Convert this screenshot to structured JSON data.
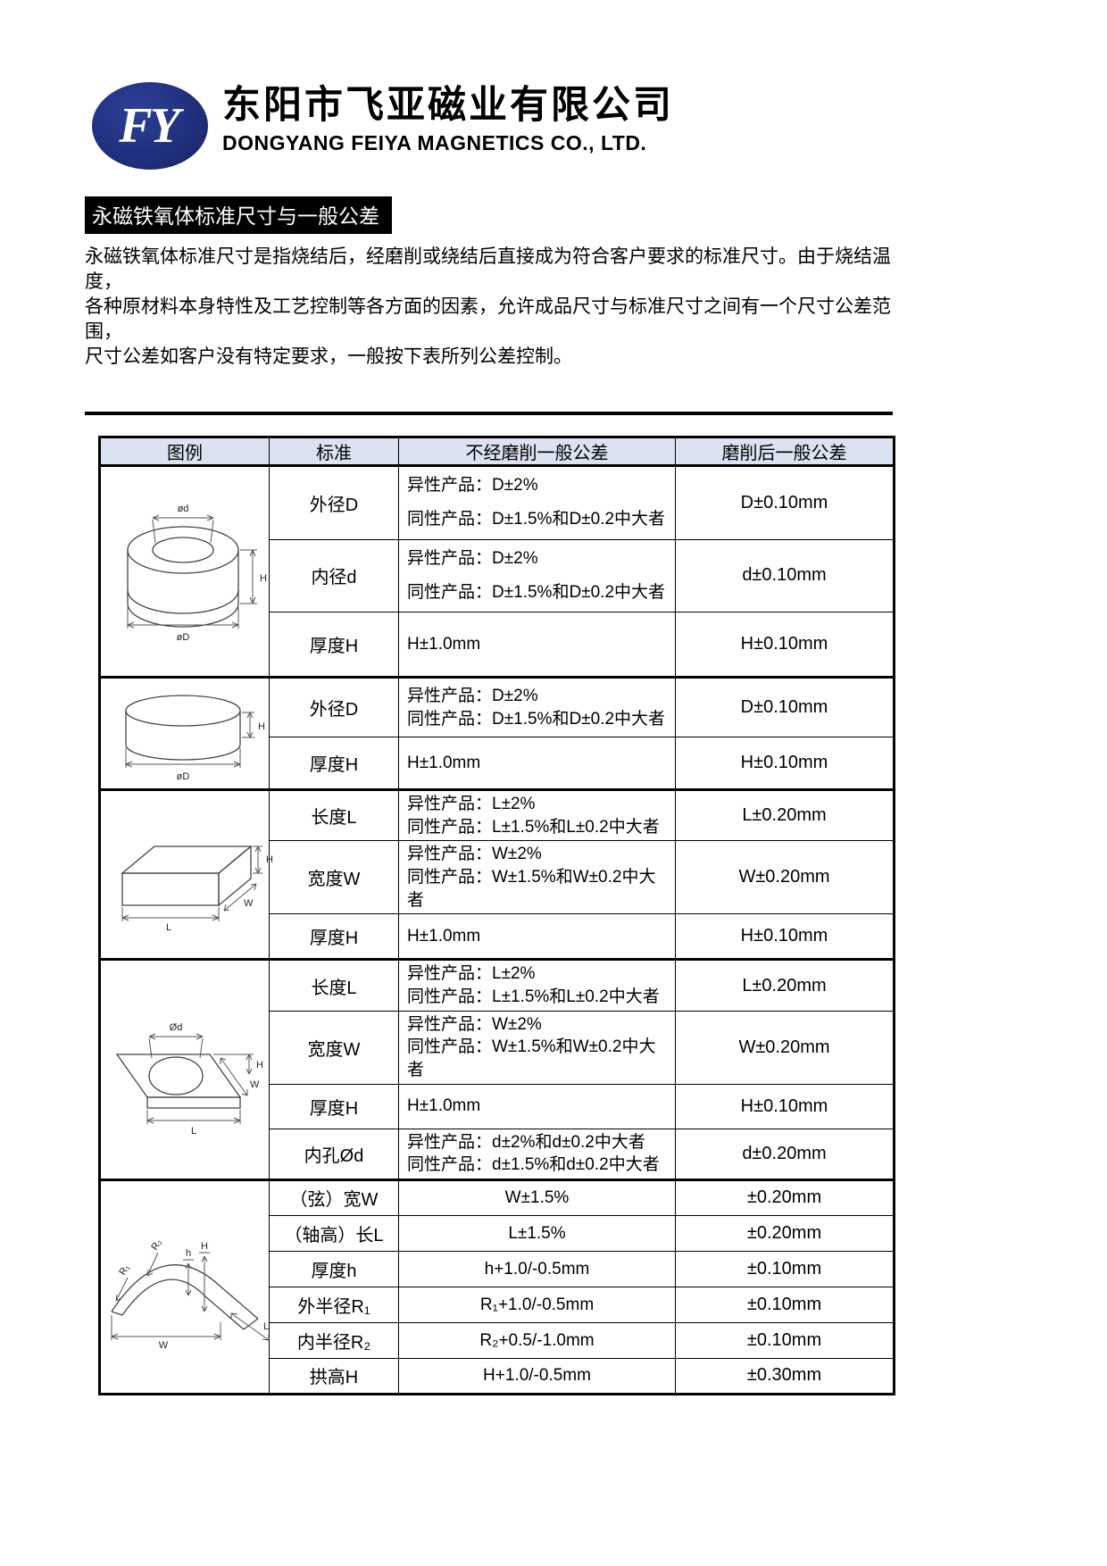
{
  "company": {
    "logo_text": "FY",
    "name_cn": "东阳市飞亚磁业有限公司",
    "name_en": "DONGYANG FEIYA MAGNETICS CO., LTD."
  },
  "section": {
    "title": "永磁铁氧体标准尺寸与一般公差",
    "paragraph_lines": [
      "永磁铁氧体标准尺寸是指烧结后，经磨削或绕结后直接成为符合客户要求的标准尺寸。由于烧结温度，",
      "各种原材料本身特性及工艺控制等各方面的因素，允许成品尺寸与标准尺寸之间有一个尺寸公差范围，",
      "尺寸公差如客户没有特定要求，一般按下表所列公差控制。"
    ]
  },
  "colors": {
    "logo_navy": "#20307e",
    "table_header_bg": "#dbe2f1",
    "heading_bg": "#000000"
  },
  "table": {
    "headers": [
      "图例",
      "标准",
      "不经磨削一般公差",
      "磨削后一般公差"
    ],
    "groups": [
      {
        "diagram": "ring",
        "diagram_labels": [
          "ød",
          "H",
          "øD"
        ],
        "rows": [
          {
            "standard": "外径D",
            "tolerance_lines": [
              "异性产品：D±2%",
              "同性产品：D±1.5%和D±0.2中大者"
            ],
            "ground": "D±0.10mm",
            "center": false
          },
          {
            "standard": "内径d",
            "tolerance_lines": [
              "异性产品：D±2%",
              "同性产品：D±1.5%和D±0.2中大者"
            ],
            "ground": "d±0.10mm",
            "center": false
          },
          {
            "standard": "厚度H",
            "tolerance_lines": [
              "H±1.0mm"
            ],
            "ground": "H±0.10mm",
            "center": false
          }
        ]
      },
      {
        "diagram": "disc",
        "diagram_labels": [
          "H",
          "øD"
        ],
        "rows": [
          {
            "standard": "外径D",
            "tolerance_lines": [
              "异性产品：D±2%",
              "同性产品：D±1.5%和D±0.2中大者"
            ],
            "ground": "D±0.10mm",
            "center": false
          },
          {
            "standard": "厚度H",
            "tolerance_lines": [
              "H±1.0mm"
            ],
            "ground": "H±0.10mm",
            "center": false
          }
        ]
      },
      {
        "diagram": "block",
        "diagram_labels": [
          "H",
          "W",
          "L"
        ],
        "rows": [
          {
            "standard": "长度L",
            "tolerance_lines": [
              "异性产品：L±2%",
              "同性产品：L±1.5%和L±0.2中大者"
            ],
            "ground": "L±0.20mm",
            "center": false
          },
          {
            "standard": "宽度W",
            "tolerance_lines": [
              "异性产品：W±2%",
              "同性产品：W±1.5%和W±0.2中大者"
            ],
            "ground": "W±0.20mm",
            "center": false
          },
          {
            "standard": "厚度H",
            "tolerance_lines": [
              "H±1.0mm"
            ],
            "ground": "H±0.10mm",
            "center": false
          }
        ]
      },
      {
        "diagram": "plate",
        "diagram_labels": [
          "Ød",
          "H",
          "W",
          "L"
        ],
        "rows": [
          {
            "standard": "长度L",
            "tolerance_lines": [
              "异性产品：L±2%",
              "同性产品：L±1.5%和L±0.2中大者"
            ],
            "ground": "L±0.20mm",
            "center": false
          },
          {
            "standard": "宽度W",
            "tolerance_lines": [
              "异性产品：W±2%",
              "同性产品：W±1.5%和W±0.2中大者"
            ],
            "ground": "W±0.20mm",
            "center": false
          },
          {
            "standard": "厚度H",
            "tolerance_lines": [
              "H±1.0mm"
            ],
            "ground": "H±0.10mm",
            "center": false
          },
          {
            "standard": "内孔Ød",
            "tolerance_lines": [
              "异性产品：d±2%和d±0.2中大者",
              "同性产品：d±1.5%和d±0.2中大者"
            ],
            "ground": "d±0.20mm",
            "center": false
          }
        ]
      },
      {
        "diagram": "arc",
        "diagram_labels": [
          "R₁",
          "R₂",
          "h",
          "H",
          "W",
          "L"
        ],
        "rows": [
          {
            "standard": "（弦）宽W",
            "tolerance_lines": [
              "W±1.5%"
            ],
            "ground": "±0.20mm",
            "center": true
          },
          {
            "standard": "（轴高）长L",
            "tolerance_lines": [
              "L±1.5%"
            ],
            "ground": "±0.20mm",
            "center": true
          },
          {
            "standard": "厚度h",
            "tolerance_lines": [
              "h+1.0/-0.5mm"
            ],
            "ground": "±0.10mm",
            "center": true
          },
          {
            "standard": "外半径R₁",
            "tolerance_lines": [
              "R₁+1.0/-0.5mm"
            ],
            "ground": "±0.10mm",
            "center": true
          },
          {
            "standard": "内半径R₂",
            "tolerance_lines": [
              "R₂+0.5/-1.0mm"
            ],
            "ground": "±0.10mm",
            "center": true
          },
          {
            "standard": "拱高H",
            "tolerance_lines": [
              "H+1.0/-0.5mm"
            ],
            "ground": "±0.30mm",
            "center": true
          }
        ]
      }
    ]
  }
}
